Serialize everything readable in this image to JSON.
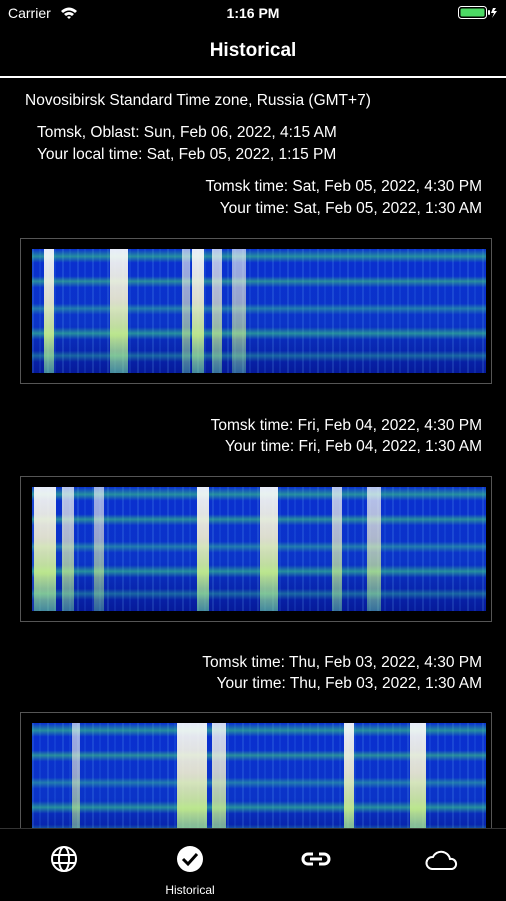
{
  "status_bar": {
    "carrier": "Carrier",
    "time": "1:16 PM"
  },
  "header": {
    "title": "Historical"
  },
  "timezone": "Novosibirsk Standard Time zone, Russia (GMT+7)",
  "current": {
    "location_time": "Tomsk, Oblast: Sun, Feb 06, 2022, 4:15 AM",
    "local_time": "Your local time: Sat, Feb 05, 2022, 1:15 PM"
  },
  "entries": [
    {
      "tomsk_time": "Tomsk time: Sat, Feb 05, 2022, 4:30 PM",
      "your_time": "Your time: Sat, Feb 05, 2022, 1:30 AM"
    },
    {
      "tomsk_time": "Tomsk time: Fri, Feb 04, 2022, 4:30 PM",
      "your_time": "Your time: Fri, Feb 04, 2022, 1:30 AM"
    },
    {
      "tomsk_time": "Tomsk time: Thu, Feb 03, 2022, 4:30 PM",
      "your_time": "Your time: Thu, Feb 03, 2022, 1:30 AM"
    }
  ],
  "tab_bar": {
    "active_label": "Historical"
  }
}
